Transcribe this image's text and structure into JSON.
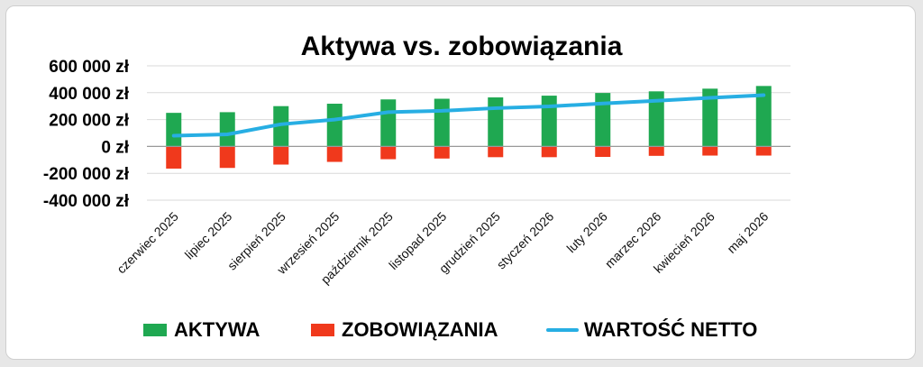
{
  "chart_data": {
    "type": "bar",
    "title": "Aktywa vs. zobowiązania",
    "categories": [
      "czerwiec 2025",
      "lipiec 2025",
      "sierpień 2025",
      "wrzesień 2025",
      "październik 2025",
      "listopad 2025",
      "grudzień 2025",
      "styczeń 2026",
      "luty 2026",
      "marzec 2026",
      "kwiecień 2026",
      "maj 2026"
    ],
    "series": [
      {
        "name": "AKTYWA",
        "kind": "bar",
        "color": "#1fa851",
        "values": [
          250000,
          255000,
          300000,
          318000,
          350000,
          355000,
          365000,
          378000,
          398000,
          410000,
          430000,
          450000
        ]
      },
      {
        "name": "ZOBOWIĄZANIA",
        "kind": "bar",
        "color": "#f0391c",
        "values": [
          -165000,
          -160000,
          -135000,
          -115000,
          -95000,
          -90000,
          -80000,
          -80000,
          -78000,
          -70000,
          -68000,
          -68000
        ]
      },
      {
        "name": "WARTOŚĆ NETTO",
        "kind": "line",
        "color": "#27aee3",
        "values": [
          80000,
          90000,
          165000,
          200000,
          255000,
          265000,
          285000,
          298000,
          320000,
          340000,
          362000,
          382000
        ]
      }
    ],
    "yticks": [
      {
        "value": 600000,
        "label": "600 000 zł"
      },
      {
        "value": 400000,
        "label": "400 000 zł"
      },
      {
        "value": 200000,
        "label": "200 000 zł"
      },
      {
        "value": 0,
        "label": "0 zł"
      },
      {
        "value": -200000,
        "label": "-200 000 zł"
      },
      {
        "value": -400000,
        "label": "-400 000 zł"
      }
    ],
    "ylim": [
      -400000,
      600000
    ],
    "grid": true,
    "legend_position": "bottom"
  }
}
